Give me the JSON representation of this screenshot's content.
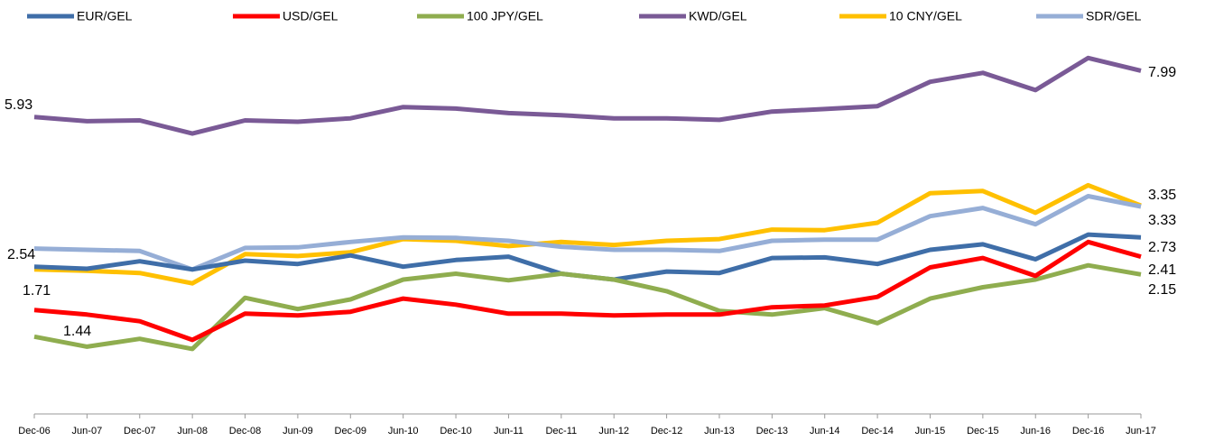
{
  "chart_data": {
    "type": "line",
    "categories": [
      "Dec-06",
      "Jun-07",
      "Dec-07",
      "Jun-08",
      "Dec-08",
      "Jun-09",
      "Dec-09",
      "Jun-10",
      "Dec-10",
      "Jun-11",
      "Dec-11",
      "Jun-12",
      "Dec-12",
      "Jun-13",
      "Dec-13",
      "Jun-14",
      "Dec-14",
      "Jun-15",
      "Dec-15",
      "Jun-16",
      "Dec-16",
      "Jun-17"
    ],
    "log_scale": true,
    "ylim": [
      0.875,
      12.6
    ],
    "series": [
      {
        "name": "EUR/GEL",
        "color": "#3f6ea8",
        "values": [
          2.26,
          2.23,
          2.34,
          2.22,
          2.35,
          2.3,
          2.43,
          2.26,
          2.36,
          2.41,
          2.16,
          2.08,
          2.19,
          2.17,
          2.39,
          2.4,
          2.3,
          2.52,
          2.61,
          2.37,
          2.78,
          2.73
        ]
      },
      {
        "name": "USD/GEL",
        "color": "#ff0000",
        "values": [
          1.71,
          1.66,
          1.59,
          1.41,
          1.67,
          1.65,
          1.69,
          1.84,
          1.77,
          1.67,
          1.67,
          1.65,
          1.66,
          1.66,
          1.74,
          1.76,
          1.86,
          2.25,
          2.39,
          2.13,
          2.65,
          2.41
        ]
      },
      {
        "name": "100 JPY/GEL",
        "color": "#8fad4f",
        "values": [
          1.44,
          1.35,
          1.42,
          1.33,
          1.85,
          1.72,
          1.83,
          2.08,
          2.16,
          2.07,
          2.16,
          2.08,
          1.93,
          1.7,
          1.66,
          1.73,
          1.57,
          1.84,
          1.98,
          2.08,
          2.28,
          2.15
        ]
      },
      {
        "name": "KWD/GEL",
        "color": "#7a5a96",
        "values": [
          5.93,
          5.77,
          5.8,
          5.33,
          5.8,
          5.75,
          5.88,
          6.32,
          6.26,
          6.08,
          6.0,
          5.88,
          5.88,
          5.82,
          6.14,
          6.24,
          6.36,
          7.44,
          7.88,
          7.05,
          8.67,
          7.99
        ]
      },
      {
        "name": "10 CNY/GEL",
        "color": "#ffc000",
        "values": [
          2.22,
          2.2,
          2.17,
          2.03,
          2.45,
          2.42,
          2.48,
          2.7,
          2.67,
          2.58,
          2.65,
          2.6,
          2.67,
          2.7,
          2.87,
          2.86,
          3.0,
          3.63,
          3.68,
          3.2,
          3.82,
          3.35
        ]
      },
      {
        "name": "SDR/GEL",
        "color": "#96aed6",
        "values": [
          2.54,
          2.52,
          2.5,
          2.22,
          2.55,
          2.56,
          2.65,
          2.73,
          2.72,
          2.67,
          2.57,
          2.52,
          2.52,
          2.5,
          2.67,
          2.69,
          2.69,
          3.13,
          3.3,
          2.97,
          3.56,
          3.33
        ]
      }
    ]
  }
}
